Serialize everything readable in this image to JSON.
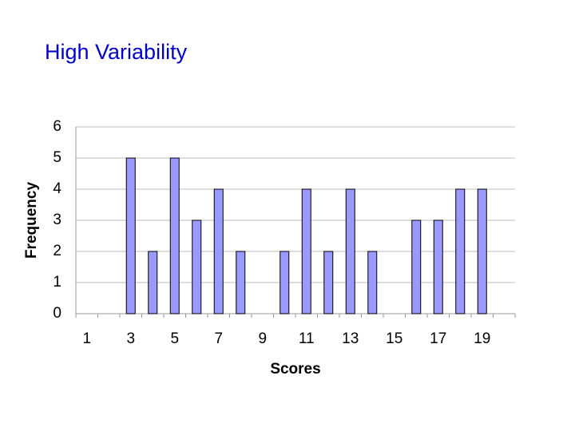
{
  "chart_data": {
    "type": "bar",
    "title": "High Variability",
    "x_label": "Scores",
    "y_label": "Frequency",
    "categories": [
      "1",
      null,
      "3",
      null,
      "5",
      null,
      "7",
      null,
      "9",
      null,
      "11",
      null,
      "13",
      null,
      "15",
      null,
      "17",
      null,
      "19",
      null
    ],
    "values": [
      0,
      0,
      5,
      2,
      5,
      3,
      4,
      2,
      0,
      2,
      4,
      2,
      4,
      2,
      0,
      3,
      3,
      4,
      4,
      0
    ],
    "color": "#9999ff",
    "ylim": [
      0,
      6
    ],
    "yticks": [
      0,
      1,
      2,
      3,
      4,
      5,
      6
    ],
    "grid": true
  }
}
